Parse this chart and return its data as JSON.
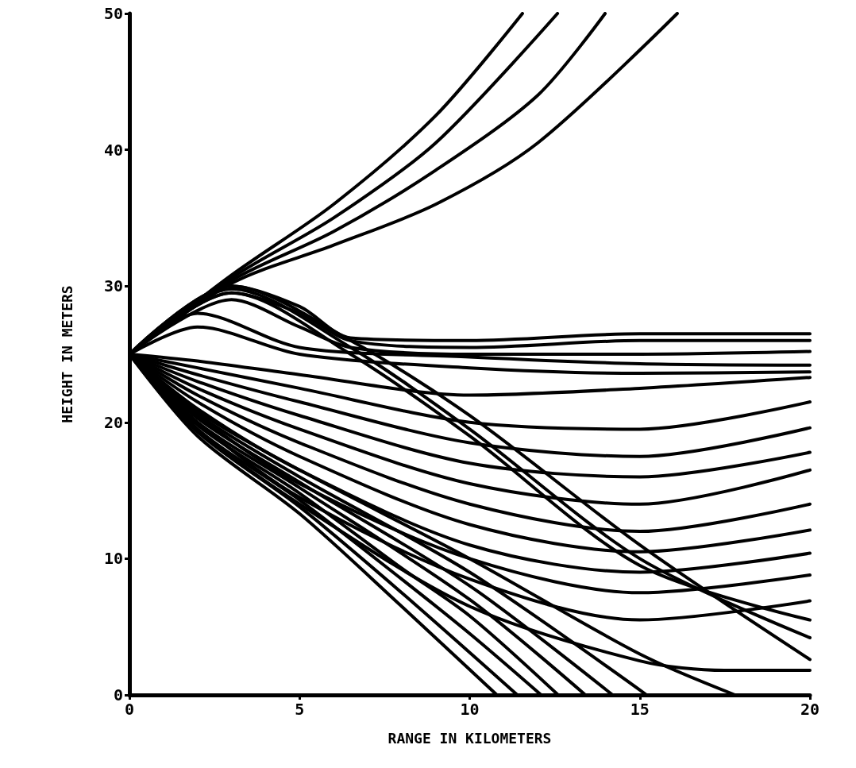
{
  "chart_data": {
    "type": "line",
    "xlabel": "RANGE IN KILOMETERS",
    "ylabel": "HEIGHT IN METERS",
    "xlim": [
      0,
      20
    ],
    "xticks": [
      0,
      5,
      10,
      15,
      20
    ],
    "ylim": [
      0,
      50
    ],
    "yticks": [
      0,
      10,
      20,
      30,
      40,
      50
    ],
    "grid": false,
    "marker": "none",
    "line_style": "solid",
    "series": [
      {
        "color": "#000000",
        "x": [
          0,
          3,
          6,
          9,
          11.55
        ],
        "values": [
          25,
          30.8,
          36,
          42.5,
          50
        ]
      },
      {
        "color": "#000000",
        "x": [
          0,
          3,
          6,
          9,
          12.58
        ],
        "values": [
          25,
          30.6,
          35,
          40.5,
          50
        ]
      },
      {
        "color": "#000000",
        "x": [
          0,
          3,
          6,
          9,
          12,
          13.98
        ],
        "values": [
          25,
          30.4,
          34,
          38.5,
          44,
          50
        ]
      },
      {
        "color": "#000000",
        "x": [
          0,
          3,
          6,
          9,
          12,
          16.1
        ],
        "values": [
          25,
          30.2,
          33,
          36,
          40.5,
          50
        ]
      },
      {
        "color": "#000000",
        "x": [
          0,
          3,
          5,
          6.5,
          10,
          15,
          20
        ],
        "values": [
          25,
          30,
          28.5,
          26.2,
          26,
          26.5,
          26.5
        ]
      },
      {
        "color": "#000000",
        "x": [
          0,
          3,
          5,
          6.5,
          10,
          15,
          20
        ],
        "values": [
          25,
          29.5,
          28,
          26,
          25.5,
          26,
          26
        ]
      },
      {
        "color": "#000000",
        "x": [
          0,
          3,
          5,
          6.5,
          10,
          15,
          20
        ],
        "values": [
          25,
          29,
          27,
          25.5,
          25,
          25,
          25.2
        ]
      },
      {
        "color": "#000000",
        "x": [
          0,
          2,
          5,
          10,
          15,
          20
        ],
        "values": [
          25,
          28,
          25.5,
          24.8,
          24.3,
          24.2
        ]
      },
      {
        "color": "#000000",
        "x": [
          0,
          2,
          5,
          10,
          15,
          20
        ],
        "values": [
          25,
          27,
          25,
          24,
          23.6,
          23.7
        ]
      },
      {
        "color": "#000000",
        "x": [
          0,
          3,
          6.5,
          10,
          15,
          20
        ],
        "values": [
          25,
          30,
          26,
          20.5,
          11,
          2.6
        ]
      },
      {
        "color": "#000000",
        "x": [
          0,
          3,
          6.5,
          10,
          15,
          20
        ],
        "values": [
          25,
          29.8,
          25.5,
          19.5,
          10,
          4.2
        ]
      },
      {
        "color": "#000000",
        "x": [
          0,
          3,
          6.5,
          10,
          15,
          20
        ],
        "values": [
          25,
          29.5,
          25,
          19,
          9.5,
          5.5
        ]
      },
      {
        "color": "#000000",
        "x": [
          0,
          2,
          5,
          10,
          15,
          20
        ],
        "values": [
          25,
          24.5,
          23.5,
          22,
          22.5,
          23.3
        ]
      },
      {
        "color": "#000000",
        "x": [
          0,
          2,
          5,
          10,
          15,
          20
        ],
        "values": [
          25,
          24,
          22.5,
          20,
          19.5,
          21.5
        ]
      },
      {
        "color": "#000000",
        "x": [
          0,
          2,
          5,
          10,
          15,
          20
        ],
        "values": [
          25,
          23.5,
          21.5,
          18.5,
          17.5,
          19.6
        ]
      },
      {
        "color": "#000000",
        "x": [
          0,
          2,
          5,
          10,
          15,
          20
        ],
        "values": [
          25,
          23,
          20.5,
          17,
          16,
          17.8
        ]
      },
      {
        "color": "#000000",
        "x": [
          0,
          2,
          5,
          10,
          15,
          20
        ],
        "values": [
          25,
          22.5,
          19.5,
          15.5,
          14,
          16.5
        ]
      },
      {
        "color": "#000000",
        "x": [
          0,
          2,
          5,
          10,
          15,
          20
        ],
        "values": [
          25,
          22,
          18.5,
          14,
          12,
          14
        ]
      },
      {
        "color": "#000000",
        "x": [
          0,
          2,
          5,
          10,
          15,
          20
        ],
        "values": [
          25,
          21.5,
          17.5,
          12.5,
          10.5,
          12.1
        ]
      },
      {
        "color": "#000000",
        "x": [
          0,
          2,
          5,
          10,
          15,
          20
        ],
        "values": [
          25,
          21,
          16.5,
          11,
          9,
          10.4
        ]
      },
      {
        "color": "#000000",
        "x": [
          0,
          2,
          5,
          10,
          15,
          20
        ],
        "values": [
          25,
          20.5,
          15.5,
          10,
          7.5,
          8.8
        ]
      },
      {
        "color": "#000000",
        "x": [
          0,
          2,
          5,
          10,
          15,
          20
        ],
        "values": [
          25,
          20,
          14.5,
          8.5,
          5.5,
          6.9
        ]
      },
      {
        "color": "#000000",
        "x": [
          0,
          2,
          5,
          10,
          15,
          17.5,
          20
        ],
        "values": [
          25,
          19.5,
          14,
          6.5,
          2.5,
          1.8,
          1.8
        ]
      },
      {
        "color": "#000000",
        "x": [
          0,
          2,
          5,
          8,
          10.8
        ],
        "values": [
          25,
          19,
          13.3,
          6.5,
          0
        ]
      },
      {
        "color": "#000000",
        "x": [
          0,
          2,
          5,
          8,
          11.4
        ],
        "values": [
          25,
          19.3,
          13.8,
          7.5,
          0
        ]
      },
      {
        "color": "#000000",
        "x": [
          0,
          2,
          5,
          8,
          10,
          12.1
        ],
        "values": [
          25,
          19.5,
          14.3,
          8.5,
          4.5,
          0
        ]
      },
      {
        "color": "#000000",
        "x": [
          0,
          2,
          5,
          8,
          10,
          12.6
        ],
        "values": [
          25,
          19.8,
          14.8,
          9.3,
          5.8,
          0
        ]
      },
      {
        "color": "#000000",
        "x": [
          0,
          2,
          5,
          10,
          13.4
        ],
        "values": [
          25,
          20,
          15.2,
          7,
          0
        ]
      },
      {
        "color": "#000000",
        "x": [
          0,
          2,
          5,
          10,
          14.2
        ],
        "values": [
          25,
          20.3,
          15.6,
          8,
          0
        ]
      },
      {
        "color": "#000000",
        "x": [
          0,
          2,
          5,
          10,
          15.2
        ],
        "values": [
          25,
          20.6,
          16,
          9,
          0
        ]
      },
      {
        "color": "#000000",
        "x": [
          0,
          2,
          5,
          10,
          15,
          17.8
        ],
        "values": [
          25,
          20.8,
          16.5,
          10,
          3,
          0
        ]
      }
    ]
  }
}
